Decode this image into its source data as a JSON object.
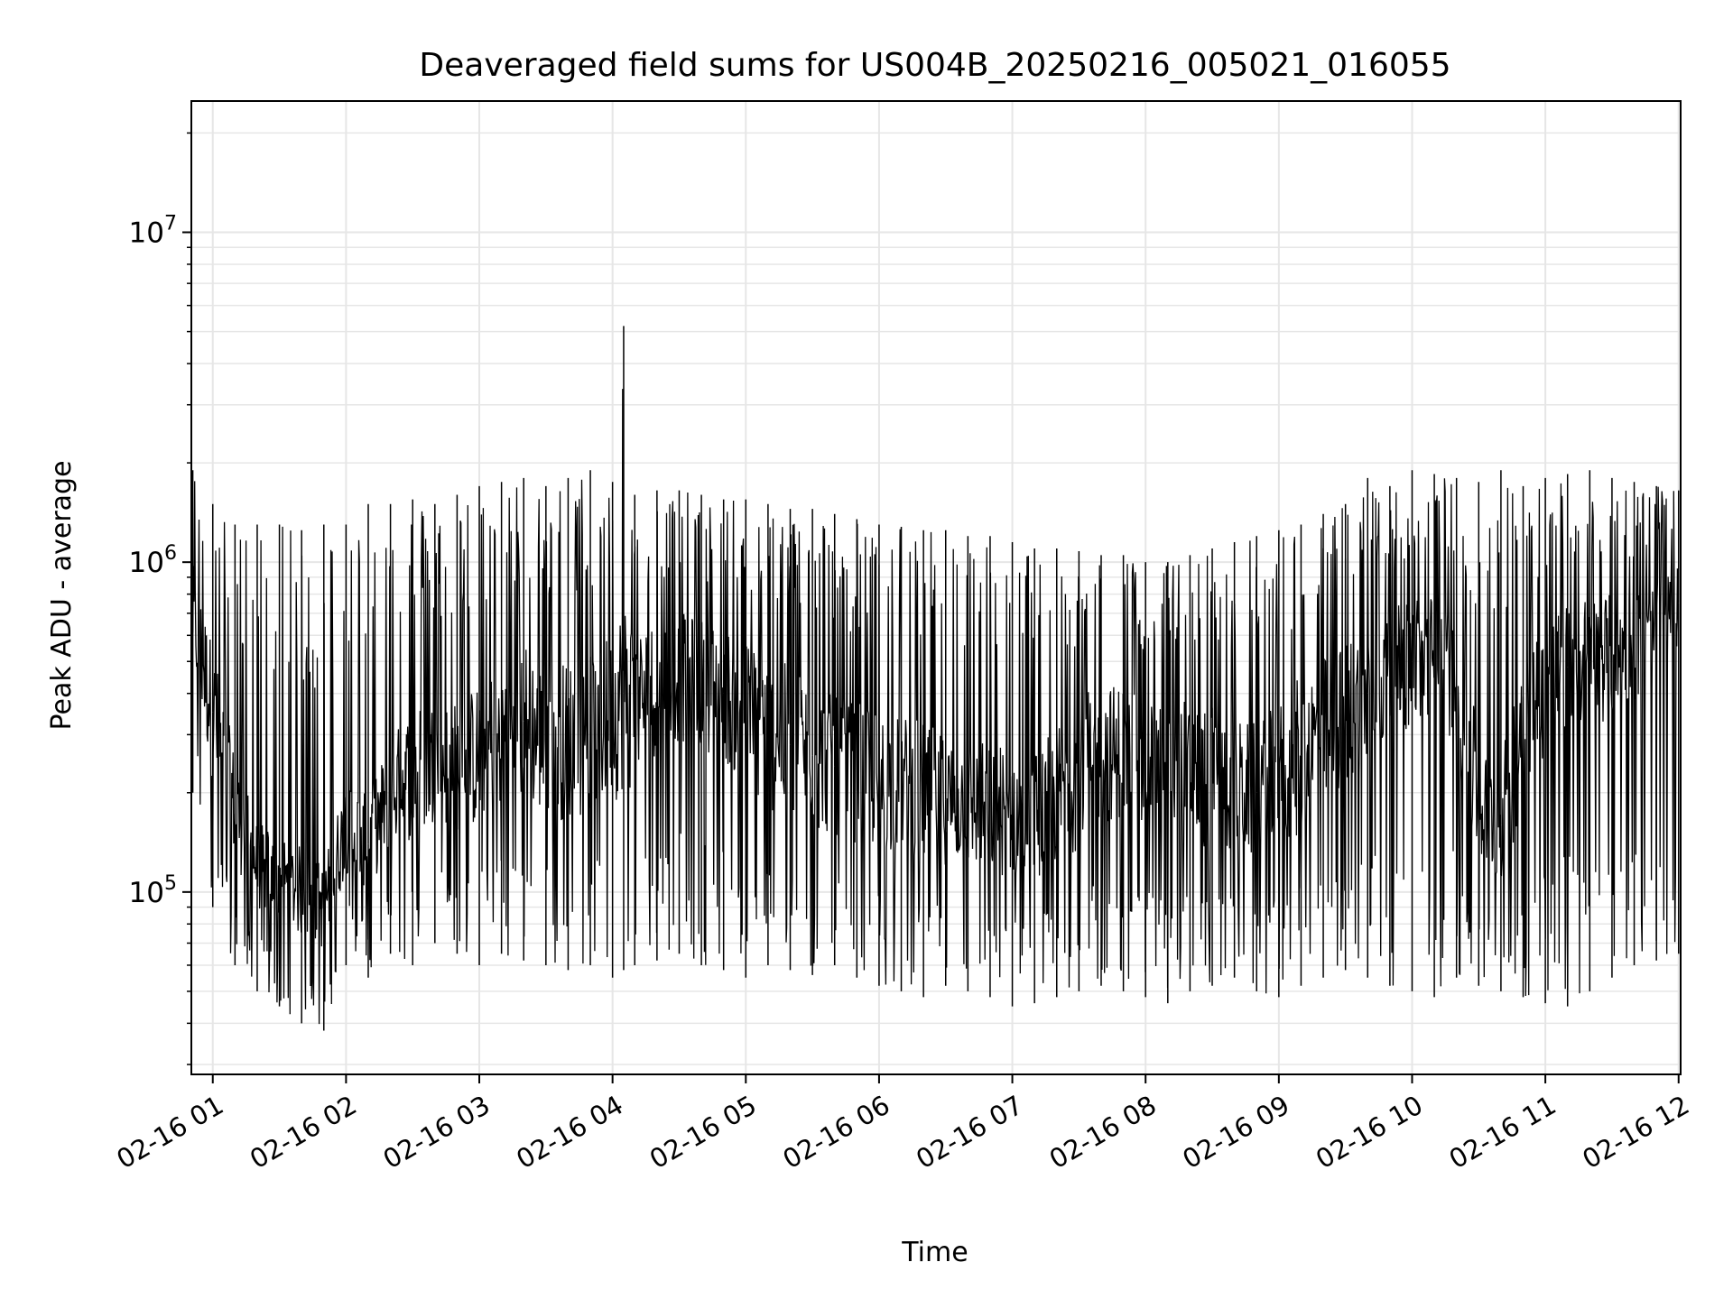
{
  "chart_data": {
    "type": "line",
    "title": "Deaveraged field sums for US004B_20250216_005021_016055",
    "xlabel": "Time",
    "ylabel": "Peak ADU - average",
    "x_tick_labels": [
      "02-16 01",
      "02-16 02",
      "02-16 03",
      "02-16 04",
      "02-16 05",
      "02-16 06",
      "02-16 07",
      "02-16 08",
      "02-16 09",
      "02-16 10",
      "02-16 11",
      "02-16 12"
    ],
    "x_tick_hours": [
      1,
      2,
      3,
      4,
      5,
      6,
      7,
      8,
      9,
      10,
      11,
      12
    ],
    "x_range": [
      "2025-02-16 00:50:21",
      "2025-02-16 12:00:55"
    ],
    "y_scale": "log",
    "y_tick_labels": [
      {
        "base": "10",
        "exp": "5",
        "value": 100000
      },
      {
        "base": "10",
        "exp": "6",
        "value": 1000000
      },
      {
        "base": "10",
        "exp": "7",
        "value": 10000000
      }
    ],
    "ylim": [
      28000,
      25000000
    ],
    "grid": true,
    "line_color": "#000000",
    "grid_color": "#e6e6e6",
    "series": [
      {
        "x": [
          "00:51",
          "01:00",
          "01:10",
          "01:20",
          "01:30",
          "01:40",
          "01:50",
          "02:00",
          "02:10",
          "02:20",
          "02:30",
          "02:40",
          "02:50",
          "03:00",
          "03:10",
          "03:20",
          "03:30",
          "03:40",
          "03:50",
          "04:00",
          "04:05",
          "04:10",
          "04:20",
          "04:30",
          "04:40",
          "04:50",
          "05:00",
          "05:10",
          "05:20",
          "05:30",
          "05:40",
          "05:50",
          "06:00",
          "06:10",
          "06:20",
          "06:30",
          "06:40",
          "06:50",
          "07:00",
          "07:10",
          "07:20",
          "07:30",
          "07:40",
          "07:50",
          "08:00",
          "08:10",
          "08:20",
          "08:30",
          "08:40",
          "08:50",
          "09:00",
          "09:10",
          "09:20",
          "09:30",
          "09:40",
          "09:50",
          "10:00",
          "10:10",
          "10:20",
          "10:30",
          "10:40",
          "10:50",
          "11:00",
          "11:10",
          "11:20",
          "11:30",
          "11:40",
          "11:50",
          "12:00"
        ],
        "y": [
          700000,
          350000,
          180000,
          120000,
          110000,
          100000,
          90000,
          160000,
          140000,
          200000,
          230000,
          250000,
          240000,
          260000,
          300000,
          330000,
          280000,
          290000,
          300000,
          350000,
          400000,
          380000,
          420000,
          450000,
          430000,
          400000,
          350000,
          300000,
          280000,
          260000,
          240000,
          230000,
          220000,
          210000,
          200000,
          190000,
          185000,
          180000,
          175000,
          170000,
          200000,
          230000,
          260000,
          270000,
          250000,
          240000,
          230000,
          220000,
          210000,
          200000,
          220000,
          260000,
          300000,
          350000,
          400000,
          450000,
          500000,
          520000,
          450000,
          180000,
          160000,
          350000,
          420000,
          480000,
          500000,
          520000,
          550000,
          600000,
          750000
        ],
        "y_min": [
          200000,
          90000,
          60000,
          50000,
          45000,
          40000,
          38000,
          60000,
          55000,
          65000,
          60000,
          70000,
          65000,
          60000,
          65000,
          62000,
          60000,
          58000,
          60000,
          55000,
          58000,
          60000,
          62000,
          65000,
          60000,
          58000,
          55000,
          60000,
          58000,
          56000,
          60000,
          55000,
          52000,
          50000,
          48000,
          52000,
          50000,
          48000,
          45000,
          46000,
          48000,
          50000,
          52000,
          50000,
          48000,
          46000,
          50000,
          52000,
          55000,
          50000,
          48000,
          52000,
          55000,
          58000,
          55000,
          52000,
          50000,
          48000,
          55000,
          52000,
          50000,
          48000,
          46000,
          45000,
          50000,
          55000,
          60000,
          62000,
          65000
        ],
        "y_max": [
          1900000,
          1500000,
          1300000,
          1300000,
          1300000,
          1250000,
          1300000,
          1300000,
          1500000,
          1500000,
          1550000,
          1500000,
          1600000,
          1700000,
          1750000,
          1800000,
          1700000,
          1800000,
          1900000,
          1750000,
          5200000,
          1600000,
          1650000,
          1650000,
          1600000,
          1550000,
          1550000,
          1500000,
          1450000,
          1450000,
          1400000,
          1350000,
          1300000,
          1280000,
          1250000,
          1250000,
          1200000,
          1200000,
          1150000,
          1100000,
          1100000,
          1080000,
          1050000,
          1050000,
          1000000,
          1000000,
          1050000,
          1100000,
          1150000,
          1200000,
          1250000,
          1300000,
          1400000,
          1500000,
          1800000,
          1700000,
          1900000,
          1850000,
          1800000,
          1750000,
          1900000,
          1700000,
          1800000,
          1850000,
          1900000,
          1800000,
          1750000,
          1700000,
          1650000
        ]
      }
    ]
  }
}
